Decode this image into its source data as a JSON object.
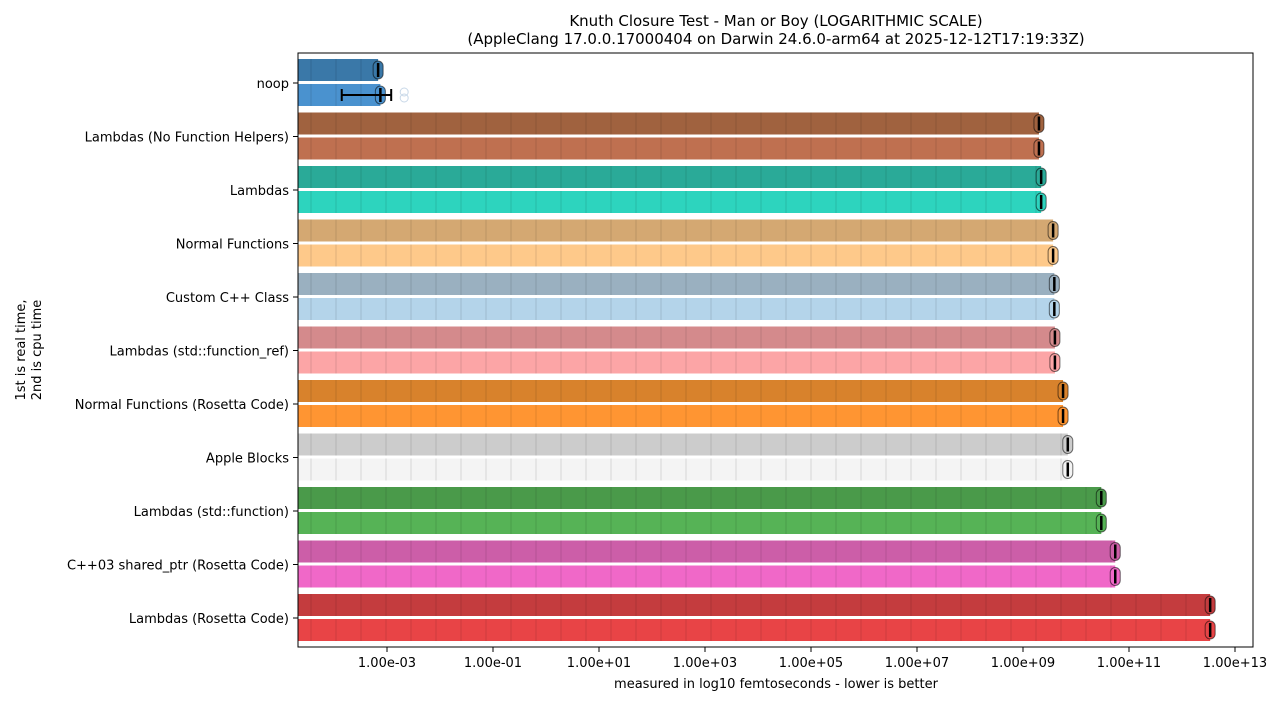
{
  "chart_data": {
    "type": "bar",
    "orientation": "horizontal",
    "title": "Knuth Closure Test - Man or Boy (LOGARITHMIC SCALE)",
    "subtitle": "(AppleClang 17.0.0.17000404 on Darwin 24.6.0-arm64 at 2025-12-12T17:19:33Z)",
    "xlabel": "measured in log10 femtoseconds - lower is better",
    "ylabel_line1": "1st is real time,",
    "ylabel_line2": "2nd is cpu time",
    "xscale": "log",
    "xlim": [
      2.1e-05,
      22000000000000.0
    ],
    "xticks": [
      {
        "value": 0.001,
        "label": "1.00e-03"
      },
      {
        "value": 0.1,
        "label": "1.00e-01"
      },
      {
        "value": 10.0,
        "label": "1.00e+01"
      },
      {
        "value": 1000.0,
        "label": "1.00e+03"
      },
      {
        "value": 100000.0,
        "label": "1.00e+05"
      },
      {
        "value": 10000000.0,
        "label": "1.00e+07"
      },
      {
        "value": 1000000000.0,
        "label": "1.00e+09"
      },
      {
        "value": 100000000000.0,
        "label": "1.00e+11"
      },
      {
        "value": 10000000000000.0,
        "label": "1.00e+13"
      }
    ],
    "series": [
      {
        "name": "real time"
      },
      {
        "name": "cpu time"
      }
    ],
    "categories": [
      {
        "label": "noop",
        "real": 0.00068,
        "cpu": 0.00075,
        "cpu_err": [
          0.00014,
          0.0012
        ],
        "colors": [
          "#3a78a8",
          "#4a92cf"
        ]
      },
      {
        "label": "Lambdas (No Function Helpers)",
        "real": 2000000000.0,
        "cpu": 2000000000.0,
        "colors": [
          "#a0623f",
          "#bf7050"
        ]
      },
      {
        "label": "Lambdas",
        "real": 2200000000.0,
        "cpu": 2200000000.0,
        "colors": [
          "#2aaa98",
          "#2dd4be"
        ]
      },
      {
        "label": "Normal Functions",
        "real": 3700000000.0,
        "cpu": 3700000000.0,
        "colors": [
          "#d4a872",
          "#fec98a"
        ]
      },
      {
        "label": "Custom C++ Class",
        "real": 3900000000.0,
        "cpu": 3900000000.0,
        "colors": [
          "#9ab0c0",
          "#b4d4ea"
        ]
      },
      {
        "label": "Lambdas (std::function_ref)",
        "real": 4000000000.0,
        "cpu": 4000000000.0,
        "colors": [
          "#d48a8c",
          "#fca5a6"
        ]
      },
      {
        "label": "Normal Functions (Rosetta Code)",
        "real": 5700000000.0,
        "cpu": 5700000000.0,
        "colors": [
          "#d8822c",
          "#ff9532"
        ]
      },
      {
        "label": "Apple Blocks",
        "real": 7000000000.0,
        "cpu": 7000000000.0,
        "colors": [
          "#cccccc",
          "#f4f4f4"
        ]
      },
      {
        "label": "Lambdas (std::function)",
        "real": 30000000000.0,
        "cpu": 30000000000.0,
        "colors": [
          "#4a9a4a",
          "#56b356"
        ]
      },
      {
        "label": "C++03 shared_ptr (Rosetta Code)",
        "real": 55000000000.0,
        "cpu": 55000000000.0,
        "colors": [
          "#cc5ea8",
          "#f068c8"
        ]
      },
      {
        "label": "Lambdas (Rosetta Code)",
        "real": 3400000000000.0,
        "cpu": 3400000000000.0,
        "colors": [
          "#c43c3e",
          "#e84446"
        ]
      }
    ]
  }
}
